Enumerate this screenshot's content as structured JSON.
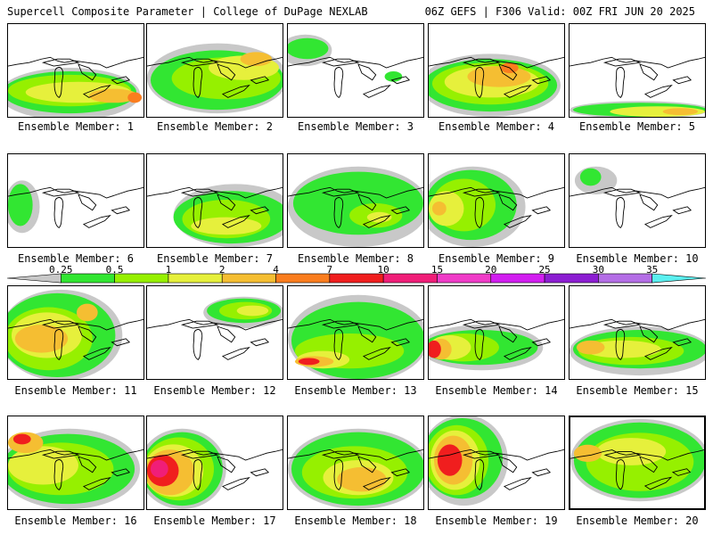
{
  "header": {
    "left": "Supercell Composite Parameter | College of DuPage NEXLAB",
    "right": "06Z GEFS | F306 Valid: 00Z FRI JUN 20 2025"
  },
  "colorbar": {
    "labels": [
      "0.25",
      "0.5",
      "1",
      "2",
      "4",
      "7",
      "10",
      "15",
      "20",
      "25",
      "30",
      "35"
    ],
    "colors": [
      "#c8c8c8",
      "#32e632",
      "#96f000",
      "#e6f03c",
      "#f5be32",
      "#fa7d1e",
      "#f01e1e",
      "#f01e78",
      "#f03cc8",
      "#d21ef0",
      "#8c1ed2",
      "#b46ee6",
      "#5af0f0"
    ]
  },
  "panels": [
    {
      "label": "Ensemble Member: 1"
    },
    {
      "label": "Ensemble Member: 2"
    },
    {
      "label": "Ensemble Member: 3"
    },
    {
      "label": "Ensemble Member: 4"
    },
    {
      "label": "Ensemble Member: 5"
    },
    {
      "label": "Ensemble Member: 6"
    },
    {
      "label": "Ensemble Member: 7"
    },
    {
      "label": "Ensemble Member: 8"
    },
    {
      "label": "Ensemble Member: 9"
    },
    {
      "label": "Ensemble Member: 10"
    },
    {
      "label": "Ensemble Member: 11"
    },
    {
      "label": "Ensemble Member: 12"
    },
    {
      "label": "Ensemble Member: 13"
    },
    {
      "label": "Ensemble Member: 14"
    },
    {
      "label": "Ensemble Member: 15"
    },
    {
      "label": "Ensemble Member: 16"
    },
    {
      "label": "Ensemble Member: 17"
    },
    {
      "label": "Ensemble Member: 18"
    },
    {
      "label": "Ensemble Member: 19"
    },
    {
      "label": "Ensemble Member: 20"
    }
  ]
}
